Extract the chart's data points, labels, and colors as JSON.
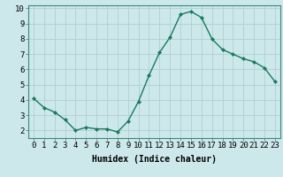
{
  "x": [
    0,
    1,
    2,
    3,
    4,
    5,
    6,
    7,
    8,
    9,
    10,
    11,
    12,
    13,
    14,
    15,
    16,
    17,
    18,
    19,
    20,
    21,
    22,
    23
  ],
  "y": [
    4.1,
    3.5,
    3.2,
    2.7,
    2.0,
    2.2,
    2.1,
    2.1,
    1.9,
    2.6,
    3.9,
    5.6,
    7.1,
    8.1,
    9.6,
    9.8,
    9.4,
    8.0,
    7.3,
    7.0,
    6.7,
    6.5,
    6.1,
    5.2
  ],
  "line_color": "#1a7a5e",
  "marker": "D",
  "marker_size": 2.0,
  "line_width": 1.0,
  "bg_color": "#cce8ea",
  "grid_color": "#b0d0d4",
  "xlabel": "Humidex (Indice chaleur)",
  "xlim": [
    -0.5,
    23.5
  ],
  "ylim": [
    1.5,
    10.2
  ],
  "yticks": [
    2,
    3,
    4,
    5,
    6,
    7,
    8,
    9,
    10
  ],
  "xticks": [
    0,
    1,
    2,
    3,
    4,
    5,
    6,
    7,
    8,
    9,
    10,
    11,
    12,
    13,
    14,
    15,
    16,
    17,
    18,
    19,
    20,
    21,
    22,
    23
  ],
  "xlabel_fontsize": 7,
  "tick_fontsize": 6.5
}
